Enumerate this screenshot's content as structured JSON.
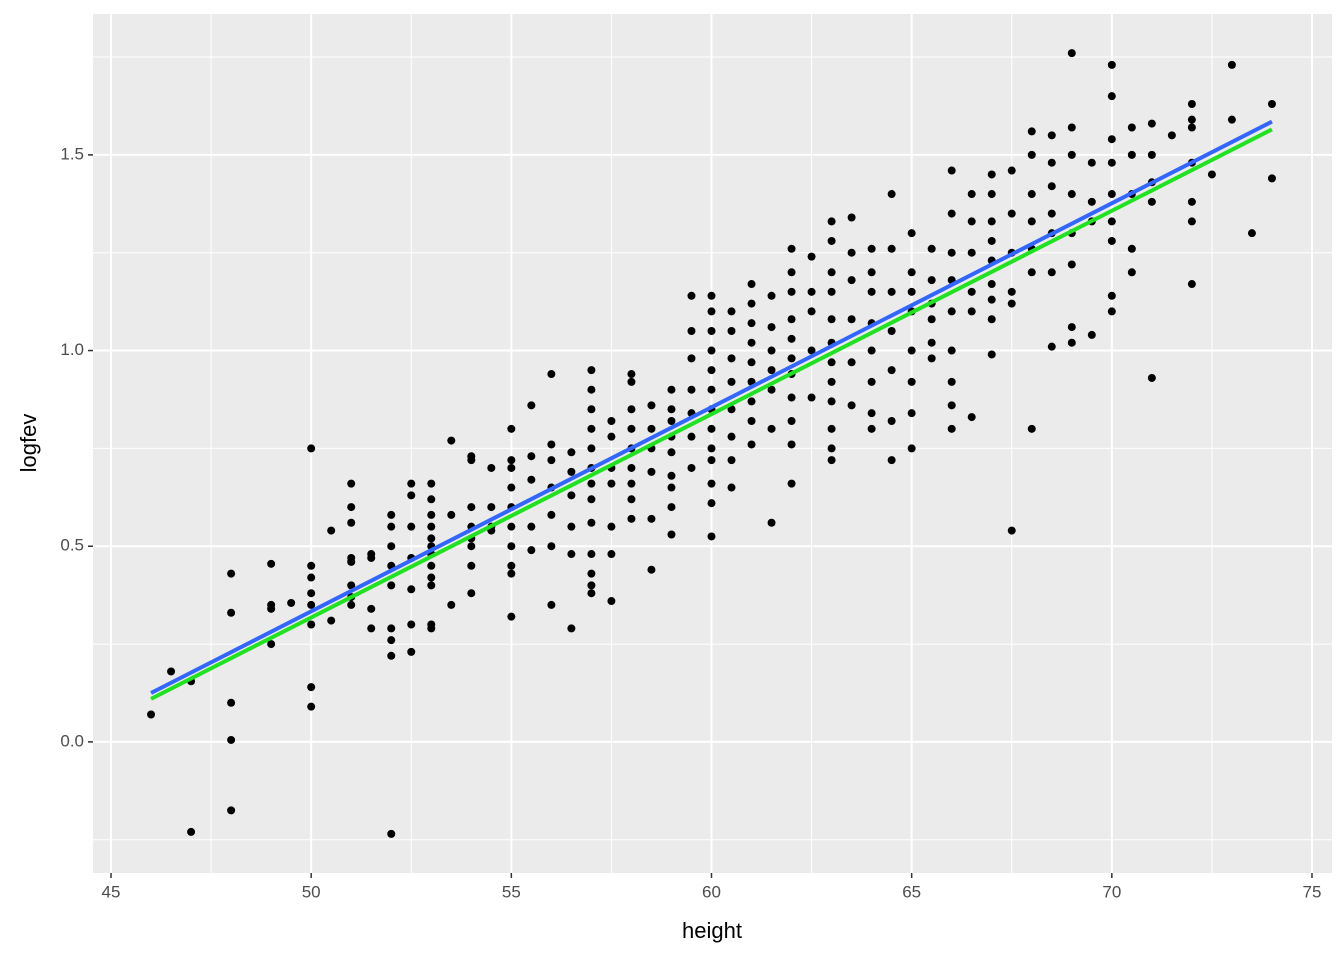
{
  "chart_data": {
    "type": "scatter",
    "x_label": "height",
    "y_label": "logfev",
    "xlim": [
      44.55,
      75.5
    ],
    "ylim": [
      -0.335,
      1.86
    ],
    "xticks": [
      45,
      50,
      55,
      60,
      65,
      70,
      75
    ],
    "yticks": [
      {
        "value": 0,
        "label": "0.0"
      },
      0.5,
      {
        "value": 1,
        "label": "1.0"
      },
      1.5
    ],
    "x_minor_grid": [
      47.5,
      52.5,
      57.5,
      62.5,
      67.5,
      72.5
    ],
    "y_minor_grid": [
      -0.25,
      0.25,
      0.75,
      1.25,
      1.75
    ],
    "grid": true,
    "panel_color": "#ebebeb",
    "grid_color": "#ffffff",
    "points": {
      "color": "#000000",
      "x": [
        46,
        46.5,
        47,
        47,
        48,
        48,
        48,
        48,
        48,
        49,
        49,
        49,
        49,
        49.5,
        50,
        50,
        50,
        50,
        50,
        50,
        50,
        50,
        50.5,
        50.5,
        51,
        51,
        51,
        51,
        51,
        51,
        51,
        51,
        51.5,
        51.5,
        51.5,
        51.5,
        52,
        52,
        52,
        52,
        52,
        52,
        52,
        52,
        52,
        52.5,
        52.5,
        52.5,
        52.5,
        52.5,
        52.5,
        52.5,
        53,
        53,
        53,
        53,
        53,
        53,
        53,
        53,
        53,
        53,
        53,
        53,
        53.5,
        53.5,
        53.5,
        54,
        54,
        54,
        54,
        54,
        54,
        54,
        54,
        54.5,
        54.5,
        54.5,
        54.5,
        55,
        55,
        55,
        55,
        55,
        55,
        55,
        55,
        55,
        55,
        55.5,
        55.5,
        55.5,
        55.5,
        55.5,
        56,
        56,
        56,
        56,
        56,
        56,
        56,
        56.5,
        56.5,
        56.5,
        56.5,
        56.5,
        56.5,
        57,
        57,
        57,
        57,
        57,
        57,
        57,
        57,
        57,
        57,
        57,
        57,
        57,
        57.5,
        57.5,
        57.5,
        57.5,
        57.5,
        57.5,
        57.5,
        58,
        58,
        58,
        58,
        58,
        58,
        58,
        58,
        58,
        58.5,
        58.5,
        58.5,
        58.5,
        58.5,
        58.5,
        59,
        59,
        59,
        59,
        59,
        59,
        59,
        59,
        59,
        59.5,
        59.5,
        59.5,
        59.5,
        59.5,
        59.5,
        59.5,
        60,
        60,
        60,
        60,
        60,
        60,
        60,
        60,
        60,
        60,
        60,
        60,
        60,
        60.5,
        60.5,
        60.5,
        60.5,
        60.5,
        60.5,
        60.5,
        60.5,
        61,
        61,
        61,
        61,
        61,
        61,
        61,
        61,
        61,
        61.5,
        61.5,
        61.5,
        61.5,
        61.5,
        61.5,
        61.5,
        62,
        62,
        62,
        62,
        62,
        62,
        62,
        62,
        62,
        62,
        62,
        62.5,
        62.5,
        62.5,
        62.5,
        62.5,
        63,
        63,
        63,
        63,
        63,
        63,
        63,
        63,
        63,
        63,
        63,
        63,
        63.5,
        63.5,
        63.5,
        63.5,
        63.5,
        63.5,
        64,
        64,
        64,
        64,
        64,
        64,
        64,
        64,
        64.5,
        64.5,
        64.5,
        64.5,
        64.5,
        64.5,
        64.5,
        65,
        65,
        65,
        65,
        65,
        65,
        65,
        65,
        65.5,
        65.5,
        65.5,
        65.5,
        65.5,
        65.5,
        66,
        66,
        66,
        66,
        66,
        66,
        66,
        66,
        66,
        66.5,
        66.5,
        66.5,
        66.5,
        66.5,
        66.5,
        67,
        67,
        67,
        67,
        67,
        67,
        67,
        67,
        67,
        67.5,
        67.5,
        67.5,
        67.5,
        67.5,
        67.5,
        68,
        68,
        68,
        68,
        68,
        68,
        68,
        68.5,
        68.5,
        68.5,
        68.5,
        68.5,
        68.5,
        68.5,
        69,
        69,
        69,
        69,
        69,
        69,
        69,
        69,
        69.5,
        69.5,
        69.5,
        69.5,
        70,
        70,
        70,
        70,
        70,
        70,
        70,
        70,
        70,
        70.5,
        70.5,
        70.5,
        70.5,
        70.5,
        71,
        71,
        71,
        71,
        71,
        71.5,
        72,
        72,
        72,
        72,
        72,
        72,
        72,
        72.5,
        73,
        73,
        73.5,
        74,
        74
      ],
      "values": [
        0.07,
        0.18,
        0.155,
        -0.23,
        0.43,
        0.33,
        0.1,
        0.005,
        -0.175,
        0.455,
        0.35,
        0.34,
        0.25,
        0.355,
        0.75,
        0.45,
        0.42,
        0.38,
        0.35,
        0.3,
        0.14,
        0.09,
        0.54,
        0.31,
        0.66,
        0.6,
        0.56,
        0.47,
        0.46,
        0.4,
        0.37,
        0.35,
        0.48,
        0.47,
        0.34,
        0.29,
        0.58,
        0.55,
        0.5,
        0.45,
        0.4,
        0.29,
        0.26,
        0.22,
        -0.235,
        0.66,
        0.63,
        0.55,
        0.47,
        0.39,
        0.3,
        0.23,
        0.66,
        0.62,
        0.58,
        0.55,
        0.52,
        0.5,
        0.48,
        0.45,
        0.42,
        0.4,
        0.3,
        0.29,
        0.77,
        0.58,
        0.35,
        0.73,
        0.72,
        0.6,
        0.55,
        0.52,
        0.5,
        0.45,
        0.38,
        0.7,
        0.6,
        0.55,
        0.54,
        0.8,
        0.72,
        0.7,
        0.65,
        0.6,
        0.55,
        0.5,
        0.45,
        0.43,
        0.32,
        0.86,
        0.73,
        0.67,
        0.55,
        0.49,
        0.94,
        0.76,
        0.72,
        0.65,
        0.58,
        0.5,
        0.35,
        0.74,
        0.69,
        0.63,
        0.55,
        0.48,
        0.29,
        0.95,
        0.9,
        0.85,
        0.8,
        0.75,
        0.7,
        0.66,
        0.62,
        0.56,
        0.48,
        0.43,
        0.4,
        0.38,
        0.82,
        0.78,
        0.7,
        0.66,
        0.55,
        0.48,
        0.36,
        0.94,
        0.92,
        0.85,
        0.8,
        0.75,
        0.7,
        0.66,
        0.62,
        0.57,
        0.86,
        0.8,
        0.75,
        0.69,
        0.57,
        0.44,
        0.9,
        0.85,
        0.82,
        0.78,
        0.74,
        0.68,
        0.65,
        0.6,
        0.53,
        1.14,
        1.05,
        0.98,
        0.9,
        0.84,
        0.78,
        0.7,
        1.14,
        1.1,
        1.05,
        1.0,
        0.95,
        0.9,
        0.85,
        0.8,
        0.75,
        0.72,
        0.66,
        0.61,
        0.525,
        1.1,
        1.05,
        0.98,
        0.92,
        0.85,
        0.78,
        0.72,
        0.65,
        1.17,
        1.12,
        1.07,
        1.02,
        0.97,
        0.92,
        0.87,
        0.82,
        0.76,
        1.14,
        1.06,
        1.0,
        0.95,
        0.9,
        0.8,
        0.56,
        1.26,
        1.2,
        1.15,
        1.08,
        1.03,
        0.98,
        0.94,
        0.88,
        0.82,
        0.76,
        0.66,
        1.24,
        1.15,
        1.1,
        1.0,
        0.88,
        1.33,
        1.28,
        1.2,
        1.15,
        1.08,
        1.02,
        0.97,
        0.92,
        0.87,
        0.8,
        0.75,
        0.72,
        1.34,
        1.25,
        1.18,
        1.08,
        0.97,
        0.86,
        1.26,
        1.2,
        1.15,
        1.07,
        1.0,
        0.92,
        0.84,
        0.8,
        1.4,
        1.26,
        1.15,
        1.05,
        0.95,
        0.82,
        0.72,
        1.3,
        1.2,
        1.15,
        1.1,
        1.0,
        0.92,
        0.84,
        0.75,
        1.26,
        1.18,
        1.12,
        1.08,
        1.02,
        0.98,
        1.46,
        1.35,
        1.25,
        1.18,
        1.1,
        1.0,
        0.92,
        0.86,
        0.8,
        1.4,
        1.33,
        1.25,
        1.15,
        1.1,
        0.83,
        1.45,
        1.4,
        1.33,
        1.28,
        1.23,
        1.17,
        1.13,
        1.08,
        0.99,
        1.46,
        1.35,
        1.25,
        1.15,
        1.12,
        0.54,
        1.56,
        1.5,
        1.4,
        1.33,
        1.26,
        1.2,
        0.8,
        1.55,
        1.48,
        1.42,
        1.35,
        1.3,
        1.2,
        1.01,
        1.76,
        1.57,
        1.5,
        1.4,
        1.3,
        1.22,
        1.06,
        1.02,
        1.48,
        1.38,
        1.33,
        1.04,
        1.73,
        1.65,
        1.54,
        1.48,
        1.4,
        1.33,
        1.28,
        1.14,
        1.1,
        1.57,
        1.5,
        1.4,
        1.26,
        1.2,
        1.58,
        1.5,
        1.43,
        1.38,
        0.93,
        1.55,
        1.63,
        1.59,
        1.57,
        1.48,
        1.38,
        1.33,
        1.17,
        1.45,
        1.73,
        1.59,
        1.3,
        1.63,
        1.44
      ]
    },
    "lines": [
      {
        "color": "#3366ff",
        "x": [
          46,
          74
        ],
        "values": [
          0.125,
          1.585
        ]
      },
      {
        "color": "#22e022",
        "x": [
          46,
          74
        ],
        "values": [
          0.11,
          1.565
        ]
      }
    ]
  }
}
